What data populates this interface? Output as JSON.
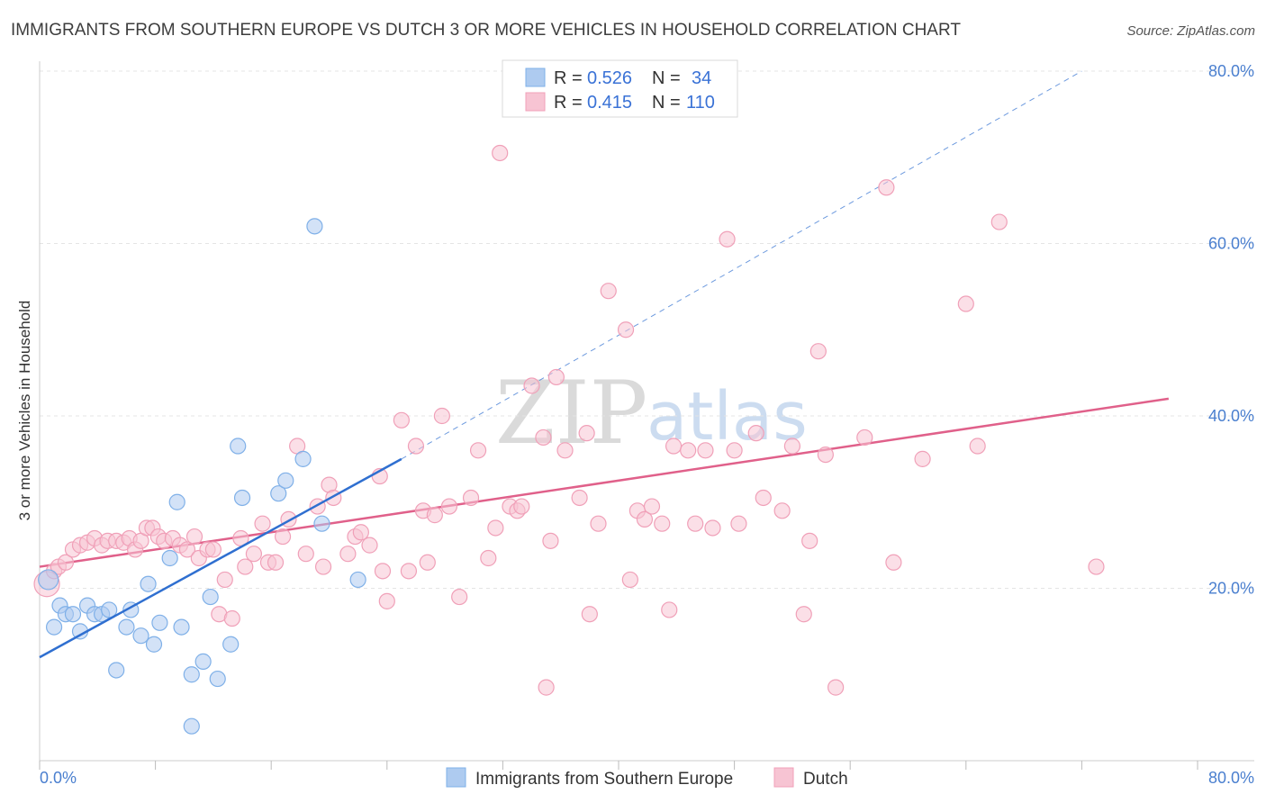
{
  "chart_data": {
    "type": "scatter",
    "title": "IMMIGRANTS FROM SOUTHERN EUROPE VS DUTCH 3 OR MORE VEHICLES IN HOUSEHOLD CORRELATION CHART",
    "source": "Source: ZipAtlas.com",
    "xlabel": "",
    "ylabel": "3 or more Vehicles in Household",
    "xlim": [
      0,
      80
    ],
    "ylim": [
      0,
      80
    ],
    "x_tick_labels": [
      "0.0%",
      "80.0%"
    ],
    "y_tick_labels": [
      "20.0%",
      "40.0%",
      "60.0%",
      "80.0%"
    ],
    "y_ticks": [
      20,
      40,
      60,
      80
    ],
    "grid": true,
    "watermark": {
      "zip": "ZIP",
      "atlas": "atlas"
    },
    "legend": {
      "position": "top-center",
      "r_label": "R =",
      "n_label": "N =",
      "entries": [
        {
          "r": "0.526",
          "n": "34"
        },
        {
          "r": "0.415",
          "n": "110"
        }
      ]
    },
    "series": [
      {
        "name": "Immigrants from Southern Europe",
        "color": "#7fb0e8",
        "fill": "#aecbf0",
        "line_color": "#2f6fd0",
        "trend": {
          "x0": 0,
          "y0": 12.0,
          "x1": 25,
          "y1": 35.0,
          "dash_x1": 72,
          "dash_y1": 80.0
        },
        "points": [
          [
            0.6,
            21.0
          ],
          [
            1.0,
            15.5
          ],
          [
            1.4,
            18.0
          ],
          [
            1.8,
            17.0
          ],
          [
            2.3,
            17.0
          ],
          [
            2.8,
            15.0
          ],
          [
            3.3,
            18.0
          ],
          [
            3.8,
            17.0
          ],
          [
            4.3,
            17.0
          ],
          [
            4.8,
            17.5
          ],
          [
            5.3,
            10.5
          ],
          [
            6.0,
            15.5
          ],
          [
            6.3,
            17.5
          ],
          [
            7.0,
            14.5
          ],
          [
            7.5,
            20.5
          ],
          [
            7.9,
            13.5
          ],
          [
            8.3,
            16.0
          ],
          [
            9.0,
            23.5
          ],
          [
            9.5,
            30.0
          ],
          [
            9.8,
            15.5
          ],
          [
            10.5,
            10.0
          ],
          [
            10.5,
            4.0
          ],
          [
            11.3,
            11.5
          ],
          [
            11.8,
            19.0
          ],
          [
            12.3,
            9.5
          ],
          [
            13.2,
            13.5
          ],
          [
            13.7,
            36.5
          ],
          [
            14.0,
            30.5
          ],
          [
            16.5,
            31.0
          ],
          [
            17.0,
            32.5
          ],
          [
            18.2,
            35.0
          ],
          [
            19.0,
            62.0
          ],
          [
            19.5,
            27.5
          ],
          [
            22.0,
            21.0
          ]
        ]
      },
      {
        "name": "Dutch",
        "color": "#f0a0b8",
        "fill": "#f7c4d3",
        "line_color": "#e0608a",
        "trend": {
          "x0": 0,
          "y0": 22.5,
          "x1": 78,
          "y1": 42.0
        },
        "points": [
          [
            0.5,
            20.5
          ],
          [
            1.0,
            22.0
          ],
          [
            1.3,
            22.5
          ],
          [
            1.8,
            23.0
          ],
          [
            2.3,
            24.5
          ],
          [
            2.8,
            25.0
          ],
          [
            3.3,
            25.3
          ],
          [
            3.8,
            25.8
          ],
          [
            4.3,
            25.0
          ],
          [
            4.7,
            25.5
          ],
          [
            5.3,
            25.5
          ],
          [
            5.8,
            25.3
          ],
          [
            6.2,
            25.8
          ],
          [
            6.6,
            24.5
          ],
          [
            7.0,
            25.5
          ],
          [
            7.4,
            27.0
          ],
          [
            7.8,
            27.0
          ],
          [
            8.2,
            26.0
          ],
          [
            8.6,
            25.5
          ],
          [
            9.2,
            25.8
          ],
          [
            9.7,
            25.0
          ],
          [
            10.2,
            24.5
          ],
          [
            10.7,
            26.0
          ],
          [
            11.0,
            23.5
          ],
          [
            11.6,
            24.5
          ],
          [
            12.0,
            24.5
          ],
          [
            12.4,
            17.0
          ],
          [
            12.8,
            21.0
          ],
          [
            13.3,
            16.5
          ],
          [
            13.9,
            25.8
          ],
          [
            14.2,
            22.5
          ],
          [
            14.8,
            24.0
          ],
          [
            15.4,
            27.5
          ],
          [
            15.8,
            23.0
          ],
          [
            16.3,
            23.0
          ],
          [
            16.8,
            26.0
          ],
          [
            17.2,
            28.0
          ],
          [
            17.8,
            36.5
          ],
          [
            18.4,
            24.0
          ],
          [
            19.2,
            29.5
          ],
          [
            19.6,
            22.5
          ],
          [
            20.0,
            32.0
          ],
          [
            20.3,
            30.5
          ],
          [
            21.3,
            24.0
          ],
          [
            21.8,
            26.0
          ],
          [
            22.2,
            26.5
          ],
          [
            22.8,
            25.0
          ],
          [
            23.5,
            33.0
          ],
          [
            23.7,
            22.0
          ],
          [
            24.0,
            18.5
          ],
          [
            25.0,
            39.5
          ],
          [
            25.5,
            22.0
          ],
          [
            26.0,
            36.5
          ],
          [
            26.5,
            29.0
          ],
          [
            26.8,
            23.0
          ],
          [
            27.3,
            28.5
          ],
          [
            27.8,
            40.0
          ],
          [
            28.3,
            29.5
          ],
          [
            29.0,
            19.0
          ],
          [
            29.8,
            30.5
          ],
          [
            30.3,
            36.0
          ],
          [
            31.0,
            23.5
          ],
          [
            31.5,
            27.0
          ],
          [
            31.8,
            70.5
          ],
          [
            32.5,
            29.5
          ],
          [
            33.0,
            29.0
          ],
          [
            33.3,
            29.5
          ],
          [
            34.0,
            43.5
          ],
          [
            34.8,
            37.5
          ],
          [
            35.0,
            8.5
          ],
          [
            35.3,
            25.5
          ],
          [
            35.7,
            44.5
          ],
          [
            36.3,
            36.0
          ],
          [
            37.3,
            30.5
          ],
          [
            37.8,
            38.0
          ],
          [
            38.0,
            17.0
          ],
          [
            38.6,
            27.5
          ],
          [
            39.3,
            54.5
          ],
          [
            40.5,
            50.0
          ],
          [
            40.8,
            21.0
          ],
          [
            41.3,
            29.0
          ],
          [
            41.8,
            28.0
          ],
          [
            42.3,
            29.5
          ],
          [
            43.0,
            27.5
          ],
          [
            43.5,
            17.5
          ],
          [
            43.8,
            36.5
          ],
          [
            44.8,
            36.0
          ],
          [
            45.3,
            27.5
          ],
          [
            46.0,
            36.0
          ],
          [
            46.5,
            27.0
          ],
          [
            47.5,
            60.5
          ],
          [
            48.0,
            36.0
          ],
          [
            48.3,
            27.5
          ],
          [
            49.5,
            38.0
          ],
          [
            50.0,
            30.5
          ],
          [
            51.3,
            29.0
          ],
          [
            52.0,
            36.5
          ],
          [
            52.8,
            17.0
          ],
          [
            53.2,
            25.5
          ],
          [
            53.8,
            47.5
          ],
          [
            54.3,
            35.5
          ],
          [
            55.0,
            8.5
          ],
          [
            57.0,
            37.5
          ],
          [
            58.5,
            66.5
          ],
          [
            59.0,
            23.0
          ],
          [
            61.0,
            35.0
          ],
          [
            64.0,
            53.0
          ],
          [
            64.8,
            36.5
          ],
          [
            66.3,
            62.5
          ],
          [
            73.0,
            22.5
          ]
        ]
      }
    ]
  }
}
